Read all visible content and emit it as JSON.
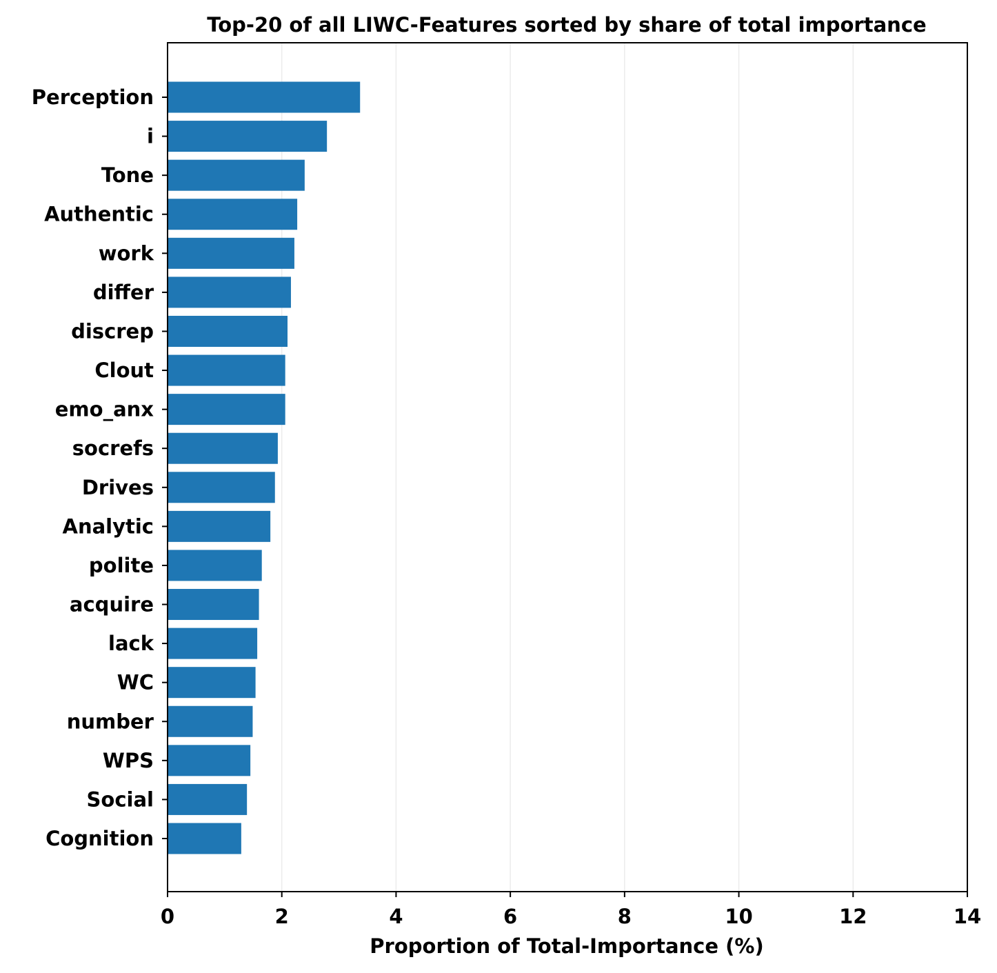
{
  "chart_data": {
    "type": "bar",
    "orientation": "horizontal",
    "title": "Top-20 of all LIWC-Features sorted by share of total importance",
    "xlabel": "Proportion of Total-Importance (%)",
    "ylabel": "",
    "xlim": [
      0,
      14
    ],
    "xticks": [
      0,
      2,
      4,
      6,
      8,
      10,
      12,
      14
    ],
    "grid": "vertical",
    "bar_color": "#1f77b4",
    "categories": [
      "Perception",
      "i",
      "Tone",
      "Authentic",
      "work",
      "differ",
      "discrep",
      "Clout",
      "emo_anx",
      "socrefs",
      "Drives",
      "Analytic",
      "polite",
      "acquire",
      "lack",
      "WC",
      "number",
      "WPS",
      "Social",
      "Cognition"
    ],
    "values": [
      3.37,
      2.79,
      2.4,
      2.27,
      2.22,
      2.16,
      2.1,
      2.06,
      2.06,
      1.93,
      1.88,
      1.8,
      1.65,
      1.6,
      1.57,
      1.54,
      1.49,
      1.45,
      1.39,
      1.29
    ]
  }
}
